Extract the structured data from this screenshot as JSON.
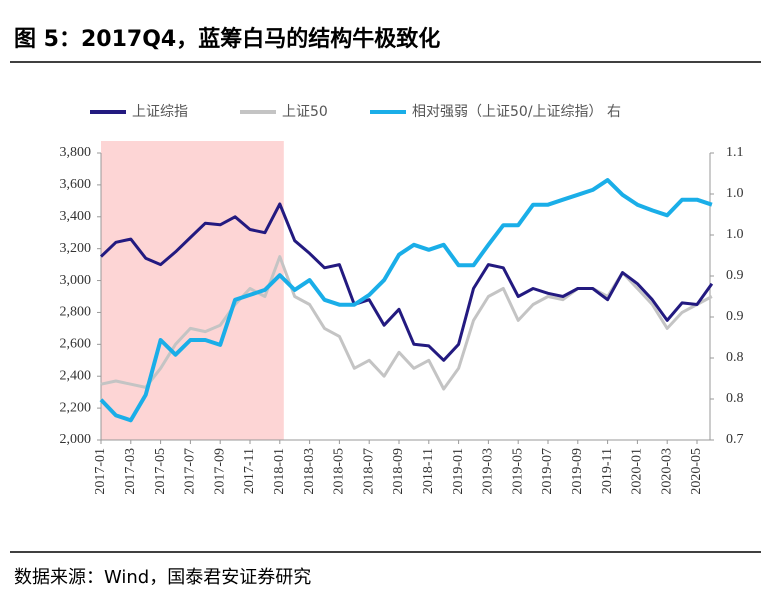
{
  "title": "图 5：2017Q4，蓝筹白马的结构牛极致化",
  "source": "数据来源：Wind，国泰君安证券研究",
  "chart_data": {
    "type": "line",
    "x": [
      "2017-01",
      "2017-02",
      "2017-03",
      "2017-04",
      "2017-05",
      "2017-06",
      "2017-07",
      "2017-08",
      "2017-09",
      "2017-10",
      "2017-11",
      "2017-12",
      "2018-01",
      "2018-02",
      "2018-03",
      "2018-04",
      "2018-05",
      "2018-06",
      "2018-07",
      "2018-08",
      "2018-09",
      "2018-10",
      "2018-11",
      "2018-12",
      "2019-01",
      "2019-02",
      "2019-03",
      "2019-04",
      "2019-05",
      "2019-06",
      "2019-07",
      "2019-08",
      "2019-09",
      "2019-10",
      "2019-11",
      "2019-12",
      "2020-01",
      "2020-02",
      "2020-03",
      "2020-04",
      "2020-05",
      "2020-06"
    ],
    "series": [
      {
        "name": "上证综指",
        "color": "#231a80",
        "values": [
          3150,
          3240,
          3260,
          3140,
          3100,
          3180,
          3270,
          3360,
          3350,
          3400,
          3320,
          3300,
          3480,
          3250,
          3170,
          3080,
          3100,
          2850,
          2880,
          2720,
          2820,
          2600,
          2590,
          2500,
          2600,
          2950,
          3100,
          3080,
          2900,
          2950,
          2920,
          2900,
          2950,
          2950,
          2880,
          3050,
          2980,
          2880,
          2750,
          2860,
          2850,
          2980
        ]
      },
      {
        "name": "上证50",
        "color": "#c4c4c4",
        "values": [
          2350,
          2370,
          2350,
          2330,
          2450,
          2600,
          2700,
          2680,
          2720,
          2850,
          2950,
          2900,
          3150,
          2900,
          2850,
          2700,
          2650,
          2450,
          2500,
          2400,
          2550,
          2450,
          2500,
          2320,
          2450,
          2750,
          2900,
          2950,
          2750,
          2850,
          2900,
          2880,
          2950,
          2950,
          2900,
          3050,
          2950,
          2850,
          2700,
          2800,
          2850,
          2900
        ]
      },
      {
        "name": "相对强弱（上证50/上证综指） 右",
        "color": "#1aaee8",
        "axis": "y2",
        "values": [
          0.749,
          0.73,
          0.724,
          0.755,
          0.822,
          0.804,
          0.822,
          0.822,
          0.816,
          0.871,
          0.877,
          0.883,
          0.901,
          0.883,
          0.895,
          0.871,
          0.865,
          0.865,
          0.877,
          0.895,
          0.926,
          0.938,
          0.932,
          0.938,
          0.913,
          0.913,
          0.938,
          0.962,
          0.962,
          0.987,
          0.987,
          0.993,
          0.999,
          1.005,
          1.017,
          0.999,
          0.987,
          0.98,
          0.974,
          0.993,
          0.993,
          0.987
        ]
      }
    ],
    "shade": {
      "from": "2017-01",
      "to": "2018-01",
      "color": "#fdd5d5"
    },
    "xticks": [
      "2017-01",
      "2017-03",
      "2017-05",
      "2017-07",
      "2017-09",
      "2017-11",
      "2018-01",
      "2018-03",
      "2018-05",
      "2018-07",
      "2018-09",
      "2018-11",
      "2019-01",
      "2019-03",
      "2019-05",
      "2019-07",
      "2019-09",
      "2019-11",
      "2020-01",
      "2020-03",
      "2020-05"
    ],
    "ylim": [
      2000,
      3800
    ],
    "yticks": [
      {
        "value": 2000,
        "label": "2,000"
      },
      {
        "value": 2200,
        "label": "2,200"
      },
      {
        "value": 2400,
        "label": "2,400"
      },
      {
        "value": 2600,
        "label": "2,600"
      },
      {
        "value": 2800,
        "label": "2,800"
      },
      {
        "value": 3000,
        "label": "3,000"
      },
      {
        "value": 3200,
        "label": "3,200"
      },
      {
        "value": 3400,
        "label": "3,400"
      },
      {
        "value": 3600,
        "label": "3,600"
      },
      {
        "value": 3800,
        "label": "3,800"
      }
    ],
    "y2lim": [
      0.7,
      1.05
    ],
    "y2ticks": [
      0.7,
      {
        "value": 0.75,
        "label": "0.8"
      },
      0.8,
      {
        "value": 0.85,
        "label": "0.9"
      },
      0.9,
      {
        "value": 0.95,
        "label": "1.0"
      },
      {
        "value": 1.0,
        "label": "1.0"
      },
      {
        "value": 1.05,
        "label": "1.1"
      }
    ],
    "legend": "top"
  }
}
